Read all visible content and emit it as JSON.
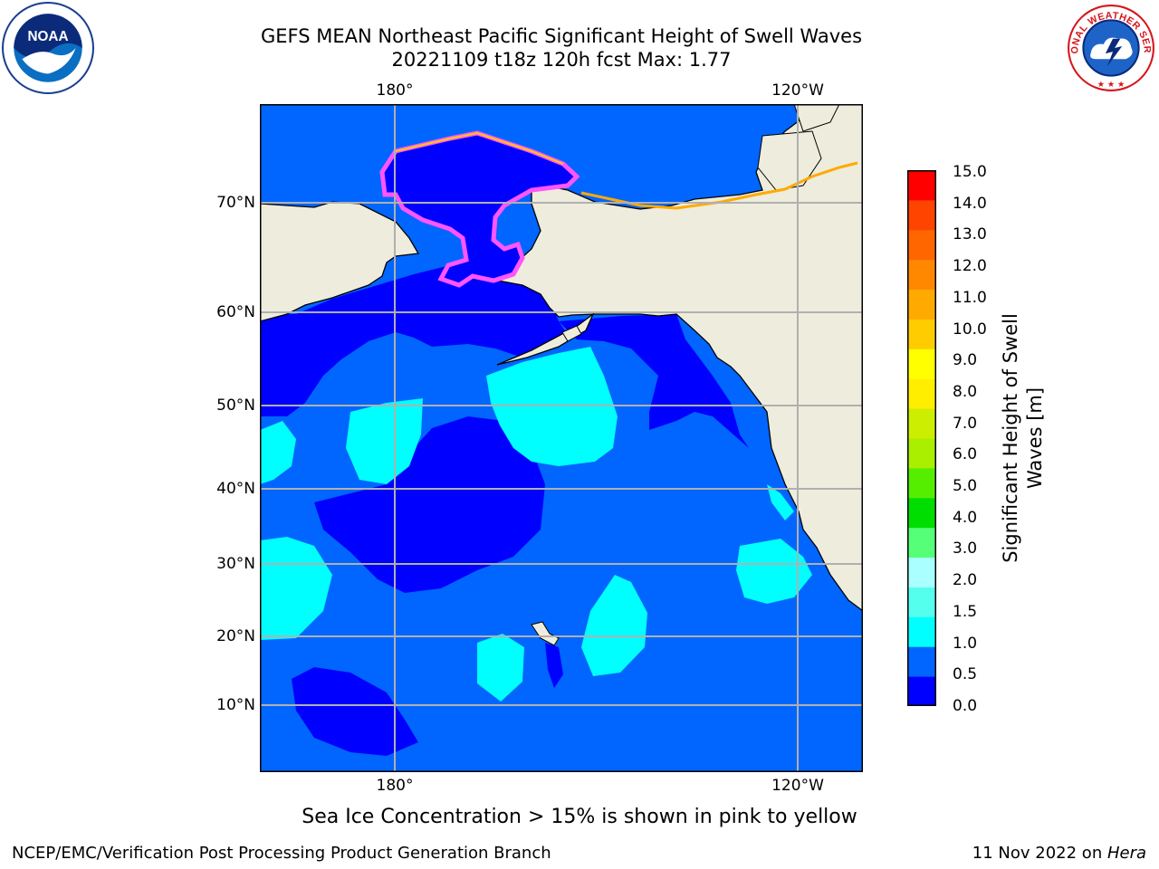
{
  "title": {
    "line1": "GEFS MEAN Northeast Pacific Significant Height of Swell Waves",
    "line2": "20221109 t18z 120h fcst   Max: 1.77"
  },
  "logos": {
    "left": "noaa-logo",
    "right": "nws-logo",
    "left_text": "NOAA",
    "right_text": "NATIONAL WEATHER SERVICE"
  },
  "map": {
    "lon_labels_top": [
      "180°",
      "120°W"
    ],
    "lon_labels_bottom": [
      "180°",
      "120°W"
    ],
    "lat_labels": [
      "70°N",
      "60°N",
      "50°N",
      "40°N",
      "30°N",
      "20°N",
      "10°N"
    ],
    "colors": {
      "ocean_deep_blue": "#0000ff",
      "ocean_blue": "#0066ff",
      "ocean_cyan": "#00ffff",
      "land": "#eeecdc",
      "sea_ice_pink": "#ff55ff",
      "sea_ice_yellow": "#ffcc00",
      "gridline": "#b0b0b0",
      "coastline": "#000000"
    }
  },
  "colorbar": {
    "title_line1": "Significant Height of Swell",
    "title_line2": "Waves [m]",
    "tick_labels": [
      "15.0",
      "14.0",
      "13.0",
      "12.0",
      "11.0",
      "10.0",
      "9.0",
      "8.0",
      "7.0",
      "6.0",
      "5.0",
      "4.0",
      "3.0",
      "2.0",
      "1.5",
      "1.0",
      "0.5",
      "0.0"
    ],
    "colors": [
      "#0000ff",
      "#0066ff",
      "#00ffff",
      "#55ffee",
      "#aaffff",
      "#55ff77",
      "#00dd00",
      "#55ee00",
      "#aaee00",
      "#ccee00",
      "#ffee00",
      "#ffff00",
      "#ffcc00",
      "#ffaa00",
      "#ff8800",
      "#ff6600",
      "#ff4400",
      "#ff0000"
    ]
  },
  "ice_note": "Sea Ice Concentration > 15% is shown in pink to yellow",
  "footer": {
    "left": "NCEP/EMC/Verification Post Processing Product Generation Branch",
    "right_prefix": "11 Nov 2022 on ",
    "right_machine": "Hera"
  }
}
